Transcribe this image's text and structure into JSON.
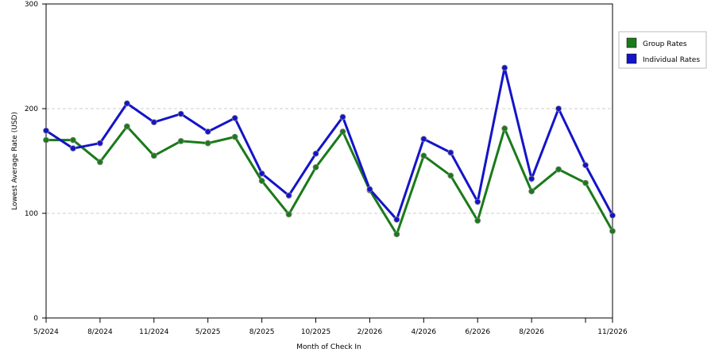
{
  "chart_data": {
    "type": "line",
    "x_label": "Month of Check In",
    "y_label": "Lowest Average Rate (USD)",
    "categories": [
      "5/2024",
      null,
      "8/2024",
      null,
      "11/2024",
      null,
      "5/2025",
      null,
      "8/2025",
      null,
      "10/2025",
      null,
      "2/2026",
      null,
      "4/2026",
      null,
      "6/2026",
      null,
      "8/2026",
      null,
      null,
      "11/2026"
    ],
    "series": [
      {
        "name": "Group Rates",
        "color": "#1a7a1a",
        "values": [
          170,
          170,
          149,
          183,
          155,
          169,
          167,
          173,
          131,
          99,
          144,
          178,
          122,
          80,
          155,
          136,
          93,
          181,
          121,
          142,
          129,
          83
        ]
      },
      {
        "name": "Individual Rates",
        "color": "#1414c8",
        "values": [
          179,
          162,
          167,
          205,
          187,
          195,
          178,
          191,
          138,
          117,
          157,
          192,
          123,
          94,
          171,
          158,
          111,
          239,
          133,
          200,
          146,
          98
        ]
      }
    ],
    "ylim": [
      0,
      300
    ],
    "yticks": [
      0,
      100,
      200,
      300
    ],
    "grid": true,
    "legend": "right"
  }
}
